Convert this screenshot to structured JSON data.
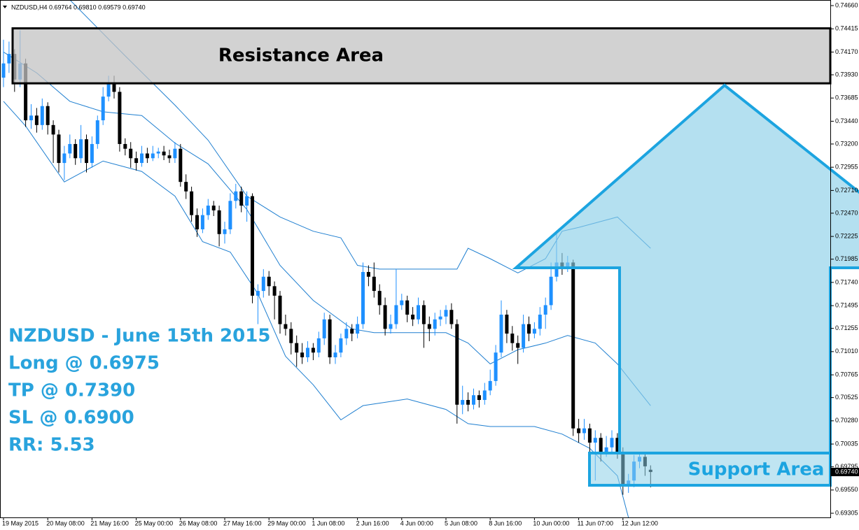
{
  "chart_data": {
    "type": "candlestick",
    "header": "NZDUSD,H4  0.69764 0.69810 0.69579 0.69740",
    "up_color": "#1e90ff",
    "down_color": "#000000",
    "band_color": "#1f7fd0",
    "xlim": [
      -0.633,
      149.367
    ],
    "ylim": [
      0.69261,
      0.74719
    ],
    "yticks": [
      {
        "value": 0.7466,
        "label": "0.74660"
      },
      {
        "value": 0.74415,
        "label": "0.74415"
      },
      {
        "value": 0.7417,
        "label": "0.74170"
      },
      {
        "value": 0.7393,
        "label": "0.73930"
      },
      {
        "value": 0.73685,
        "label": "0.73685"
      },
      {
        "value": 0.7344,
        "label": "0.73440"
      },
      {
        "value": 0.732,
        "label": "0.73200"
      },
      {
        "value": 0.72955,
        "label": "0.72955"
      },
      {
        "value": 0.7271,
        "label": "0.72710"
      },
      {
        "value": 0.7247,
        "label": "0.72470"
      },
      {
        "value": 0.72225,
        "label": "0.72225"
      },
      {
        "value": 0.71985,
        "label": "0.71985"
      },
      {
        "value": 0.7174,
        "label": "0.71740"
      },
      {
        "value": 0.71495,
        "label": "0.71495"
      },
      {
        "value": 0.71255,
        "label": "0.71255"
      },
      {
        "value": 0.7101,
        "label": "0.71010"
      },
      {
        "value": 0.70765,
        "label": "0.70765"
      },
      {
        "value": 0.70525,
        "label": "0.70525"
      },
      {
        "value": 0.7028,
        "label": "0.70280"
      },
      {
        "value": 0.70035,
        "label": "0.70035"
      },
      {
        "value": 0.69795,
        "label": "0.69795"
      },
      {
        "value": 0.6955,
        "label": "0.69550"
      },
      {
        "value": 0.69305,
        "label": "0.69305"
      }
    ],
    "current_price": {
      "value": 0.6974,
      "label": "0.69740"
    },
    "xticks": [
      {
        "value": 0,
        "label": "19 May 2015"
      },
      {
        "value": 8,
        "label": "20 May 08:00"
      },
      {
        "value": 16,
        "label": "21 May 16:00"
      },
      {
        "value": 24,
        "label": "25 May 00:00"
      },
      {
        "value": 32,
        "label": "26 May 08:00"
      },
      {
        "value": 40,
        "label": "27 May 16:00"
      },
      {
        "value": 48,
        "label": "29 May 00:00"
      },
      {
        "value": 56,
        "label": "1 Jun 08:00"
      },
      {
        "value": 64,
        "label": "2 Jun 16:00"
      },
      {
        "value": 72,
        "label": "4 Jun 00:00"
      },
      {
        "value": 80,
        "label": "5 Jun 08:00"
      },
      {
        "value": 88,
        "label": "8 Jun 16:00"
      },
      {
        "value": 96,
        "label": "10 Jun 00:00"
      },
      {
        "value": 104,
        "label": "11 Jun 07:00"
      },
      {
        "value": 112,
        "label": "12 Jun 12:00"
      }
    ],
    "ohlc": [
      [
        0.739,
        0.743,
        0.738,
        0.7405
      ],
      [
        0.7405,
        0.7428,
        0.7395,
        0.7415
      ],
      [
        0.7415,
        0.742,
        0.7375,
        0.7388
      ],
      [
        0.7388,
        0.744,
        0.738,
        0.7405
      ],
      [
        0.7405,
        0.741,
        0.7338,
        0.7345
      ],
      [
        0.7345,
        0.7362,
        0.7336,
        0.735
      ],
      [
        0.735,
        0.7358,
        0.7332,
        0.734
      ],
      [
        0.734,
        0.7368,
        0.7335,
        0.736
      ],
      [
        0.736,
        0.7364,
        0.733,
        0.734
      ],
      [
        0.734,
        0.7345,
        0.73,
        0.733
      ],
      [
        0.733,
        0.7335,
        0.729,
        0.73
      ],
      [
        0.73,
        0.7318,
        0.7282,
        0.731
      ],
      [
        0.731,
        0.733,
        0.7305,
        0.732
      ],
      [
        0.732,
        0.7325,
        0.7298,
        0.7305
      ],
      [
        0.7305,
        0.734,
        0.73,
        0.7325
      ],
      [
        0.7325,
        0.733,
        0.729,
        0.73
      ],
      [
        0.73,
        0.7328,
        0.7295,
        0.732
      ],
      [
        0.732,
        0.735,
        0.7315,
        0.7345
      ],
      [
        0.7345,
        0.738,
        0.734,
        0.737
      ],
      [
        0.737,
        0.7392,
        0.7365,
        0.7385
      ],
      [
        0.7385,
        0.7392,
        0.7368,
        0.7375
      ],
      [
        0.7375,
        0.738,
        0.7312,
        0.732
      ],
      [
        0.732,
        0.7326,
        0.7308,
        0.7315
      ],
      [
        0.7315,
        0.7322,
        0.7295,
        0.7305
      ],
      [
        0.7305,
        0.7312,
        0.7292,
        0.73
      ],
      [
        0.73,
        0.7318,
        0.7296,
        0.731
      ],
      [
        0.731,
        0.7316,
        0.73,
        0.7305
      ],
      [
        0.7305,
        0.7318,
        0.7302,
        0.731
      ],
      [
        0.731,
        0.7316,
        0.7305,
        0.7312
      ],
      [
        0.7312,
        0.7318,
        0.7303,
        0.7308
      ],
      [
        0.7308,
        0.7314,
        0.73,
        0.7305
      ],
      [
        0.7305,
        0.7322,
        0.73,
        0.7315
      ],
      [
        0.7315,
        0.732,
        0.7275,
        0.728
      ],
      [
        0.728,
        0.7288,
        0.7262,
        0.727
      ],
      [
        0.727,
        0.7275,
        0.7238,
        0.7245
      ],
      [
        0.7245,
        0.7252,
        0.7222,
        0.723
      ],
      [
        0.723,
        0.7252,
        0.7226,
        0.7245
      ],
      [
        0.7245,
        0.7262,
        0.724,
        0.7255
      ],
      [
        0.7255,
        0.726,
        0.7244,
        0.725
      ],
      [
        0.725,
        0.7255,
        0.7212,
        0.7225
      ],
      [
        0.7225,
        0.7238,
        0.7215,
        0.723
      ],
      [
        0.723,
        0.7268,
        0.7225,
        0.726
      ],
      [
        0.726,
        0.7278,
        0.7252,
        0.727
      ],
      [
        0.727,
        0.7275,
        0.7248,
        0.7255
      ],
      [
        0.7255,
        0.727,
        0.7238,
        0.7265
      ],
      [
        0.7265,
        0.7268,
        0.7152,
        0.716
      ],
      [
        0.716,
        0.7172,
        0.713,
        0.7165
      ],
      [
        0.7165,
        0.7188,
        0.7158,
        0.718
      ],
      [
        0.718,
        0.7186,
        0.716,
        0.717
      ],
      [
        0.717,
        0.7175,
        0.7135,
        0.716
      ],
      [
        0.716,
        0.7165,
        0.712,
        0.713
      ],
      [
        0.713,
        0.714,
        0.7118,
        0.7125
      ],
      [
        0.7125,
        0.7132,
        0.7098,
        0.711
      ],
      [
        0.711,
        0.7118,
        0.7085,
        0.71
      ],
      [
        0.71,
        0.711,
        0.7088,
        0.7095
      ],
      [
        0.7095,
        0.7112,
        0.709,
        0.7105
      ],
      [
        0.7105,
        0.711,
        0.7092,
        0.71
      ],
      [
        0.71,
        0.7122,
        0.7095,
        0.7115
      ],
      [
        0.7115,
        0.7142,
        0.7108,
        0.7135
      ],
      [
        0.7135,
        0.714,
        0.7088,
        0.7095
      ],
      [
        0.7095,
        0.7108,
        0.7088,
        0.71
      ],
      [
        0.71,
        0.712,
        0.7095,
        0.7115
      ],
      [
        0.7115,
        0.7132,
        0.7108,
        0.7125
      ],
      [
        0.7125,
        0.713,
        0.7112,
        0.712
      ],
      [
        0.712,
        0.7138,
        0.7115,
        0.713
      ],
      [
        0.713,
        0.7195,
        0.7125,
        0.7185
      ],
      [
        0.7185,
        0.7192,
        0.717,
        0.718
      ],
      [
        0.718,
        0.7195,
        0.7158,
        0.7165
      ],
      [
        0.7165,
        0.7172,
        0.714,
        0.715
      ],
      [
        0.715,
        0.7158,
        0.7118,
        0.7125
      ],
      [
        0.7125,
        0.714,
        0.712,
        0.713
      ],
      [
        0.713,
        0.7188,
        0.7125,
        0.715
      ],
      [
        0.715,
        0.7162,
        0.7145,
        0.7155
      ],
      [
        0.7155,
        0.716,
        0.7132,
        0.714
      ],
      [
        0.714,
        0.7148,
        0.7128,
        0.7135
      ],
      [
        0.7135,
        0.7158,
        0.713,
        0.715
      ],
      [
        0.715,
        0.7155,
        0.7105,
        0.713
      ],
      [
        0.713,
        0.7138,
        0.7112,
        0.7125
      ],
      [
        0.7125,
        0.7142,
        0.7118,
        0.7135
      ],
      [
        0.7135,
        0.7145,
        0.7128,
        0.7138
      ],
      [
        0.7138,
        0.715,
        0.713,
        0.7145
      ],
      [
        0.7145,
        0.7152,
        0.7125,
        0.713
      ],
      [
        0.713,
        0.7135,
        0.7025,
        0.7045
      ],
      [
        0.7045,
        0.7065,
        0.7035,
        0.705
      ],
      [
        0.705,
        0.7058,
        0.7038,
        0.7045
      ],
      [
        0.7045,
        0.7062,
        0.704,
        0.7055
      ],
      [
        0.7055,
        0.706,
        0.7042,
        0.705
      ],
      [
        0.705,
        0.7068,
        0.7045,
        0.706
      ],
      [
        0.706,
        0.7082,
        0.7055,
        0.707
      ],
      [
        0.707,
        0.7108,
        0.7065,
        0.71
      ],
      [
        0.71,
        0.7155,
        0.7095,
        0.714
      ],
      [
        0.714,
        0.7145,
        0.711,
        0.712
      ],
      [
        0.712,
        0.7128,
        0.7102,
        0.711
      ],
      [
        0.711,
        0.7118,
        0.7088,
        0.7105
      ],
      [
        0.7105,
        0.714,
        0.71,
        0.713
      ],
      [
        0.713,
        0.7138,
        0.7112,
        0.712
      ],
      [
        0.712,
        0.7132,
        0.7115,
        0.7125
      ],
      [
        0.7125,
        0.7148,
        0.7118,
        0.714
      ],
      [
        0.714,
        0.7158,
        0.7125,
        0.715
      ],
      [
        0.715,
        0.7195,
        0.7145,
        0.718
      ],
      [
        0.718,
        0.7225,
        0.7175,
        0.7195
      ],
      [
        0.7195,
        0.7205,
        0.7182,
        0.719
      ],
      [
        0.719,
        0.7202,
        0.7185,
        0.7195
      ],
      [
        0.7195,
        0.7198,
        0.7012,
        0.702
      ],
      [
        0.702,
        0.703,
        0.7005,
        0.7015
      ],
      [
        0.7015,
        0.703,
        0.7008,
        0.702
      ],
      [
        0.702,
        0.7025,
        0.6995,
        0.7005
      ],
      [
        0.7005,
        0.7018,
        0.6965,
        0.701
      ],
      [
        0.701,
        0.7015,
        0.6985,
        0.6995
      ],
      [
        0.6995,
        0.7012,
        0.699,
        0.7
      ],
      [
        0.7,
        0.7018,
        0.6995,
        0.701
      ],
      [
        0.701,
        0.7015,
        0.6988,
        0.6995
      ],
      [
        0.6995,
        0.7,
        0.695,
        0.696
      ],
      [
        0.696,
        0.6972,
        0.6952,
        0.6965
      ],
      [
        0.6965,
        0.6992,
        0.6958,
        0.6985
      ],
      [
        0.6985,
        0.6995,
        0.6978,
        0.699
      ],
      [
        0.699,
        0.6994,
        0.697,
        0.698
      ],
      [
        0.69764,
        0.6981,
        0.69579,
        0.6974
      ]
    ],
    "bands": [
      {
        "x": [
          12,
          22,
          31,
          37,
          44,
          50,
          56,
          61,
          64,
          68,
          75,
          82,
          84,
          88,
          93,
          98,
          101,
          104,
          111,
          117
        ],
        "values": [
          0.7472,
          0.7413,
          0.7361,
          0.7324,
          0.7265,
          0.7243,
          0.7228,
          0.7221,
          0.7192,
          0.7188,
          0.7188,
          0.7188,
          0.721,
          0.7199,
          0.7184,
          0.7199,
          0.7228,
          0.7232,
          0.7243,
          0.721
        ]
      },
      {
        "x": [
          0,
          6,
          12,
          18,
          25,
          31,
          37,
          44,
          50,
          56,
          63,
          67,
          73,
          80,
          84,
          88,
          93,
          98,
          102,
          107,
          111,
          117
        ],
        "values": [
          0.7417,
          0.7395,
          0.7365,
          0.7354,
          0.735,
          0.7321,
          0.7299,
          0.7251,
          0.7192,
          0.7155,
          0.7125,
          0.7121,
          0.7121,
          0.7121,
          0.711,
          0.7088,
          0.7103,
          0.711,
          0.7118,
          0.711,
          0.7088,
          0.7044
        ]
      },
      {
        "x": [
          0,
          4,
          11,
          18,
          25,
          31,
          36,
          41,
          46,
          51,
          56,
          61,
          65,
          73,
          80,
          84,
          88,
          96,
          101,
          106,
          111,
          113
        ],
        "values": [
          0.7365,
          0.7339,
          0.728,
          0.7302,
          0.7291,
          0.7265,
          0.7217,
          0.7206,
          0.7162,
          0.7096,
          0.7066,
          0.7029,
          0.7044,
          0.7051,
          0.704,
          0.7025,
          0.7022,
          0.7022,
          0.7014,
          0.6999,
          0.697,
          0.6926
        ]
      }
    ],
    "zones": [
      {
        "label": "Resistance Area",
        "top": 0.7442,
        "bottom": 0.7384
      },
      {
        "label": "Support Area",
        "top": 0.6994,
        "bottom": 0.696
      }
    ],
    "annotations": [
      "NZDUSD - June 15th 2015",
      "Long @ 0.6975",
      "TP @ 0.7390",
      "SL @ 0.6900",
      "RR: 5.53"
    ]
  }
}
